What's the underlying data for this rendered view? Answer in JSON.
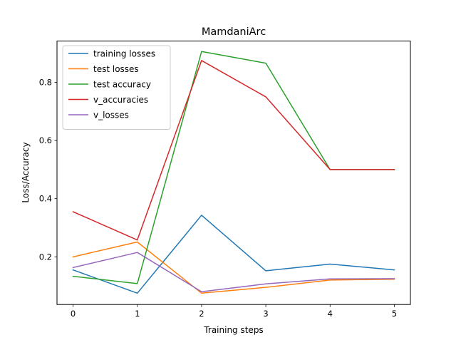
{
  "chart_data": {
    "type": "line",
    "title": "MamdaniArc",
    "xlabel": "Training steps",
    "ylabel": "Loss/Accuracy",
    "x": [
      0,
      1,
      2,
      3,
      4,
      5
    ],
    "xlim": [
      -0.25,
      5.25
    ],
    "ylim": [
      0.036,
      0.942
    ],
    "xticks": [
      0,
      1,
      2,
      3,
      4,
      5
    ],
    "yticks": [
      0.2,
      0.4,
      0.6,
      0.8
    ],
    "ytick_labels": [
      "0.2",
      "0.4",
      "0.6",
      "0.8"
    ],
    "grid": false,
    "legend_position": "upper-left",
    "series": [
      {
        "name": "training losses",
        "color": "#1f77b4",
        "values": [
          0.155,
          0.075,
          0.343,
          0.152,
          0.175,
          0.155
        ]
      },
      {
        "name": "test losses",
        "color": "#ff7f0e",
        "values": [
          0.2,
          0.251,
          0.075,
          0.095,
          0.12,
          0.123
        ]
      },
      {
        "name": "test accuracy",
        "color": "#2ca02c",
        "values": [
          0.133,
          0.108,
          0.906,
          0.866,
          0.5,
          0.5
        ]
      },
      {
        "name": "v_accuracies",
        "color": "#d62728",
        "values": [
          0.355,
          0.258,
          0.875,
          0.75,
          0.5,
          0.5
        ]
      },
      {
        "name": "v_losses",
        "color": "#9467bd",
        "values": [
          0.163,
          0.215,
          0.08,
          0.107,
          0.124,
          0.125
        ]
      }
    ]
  }
}
